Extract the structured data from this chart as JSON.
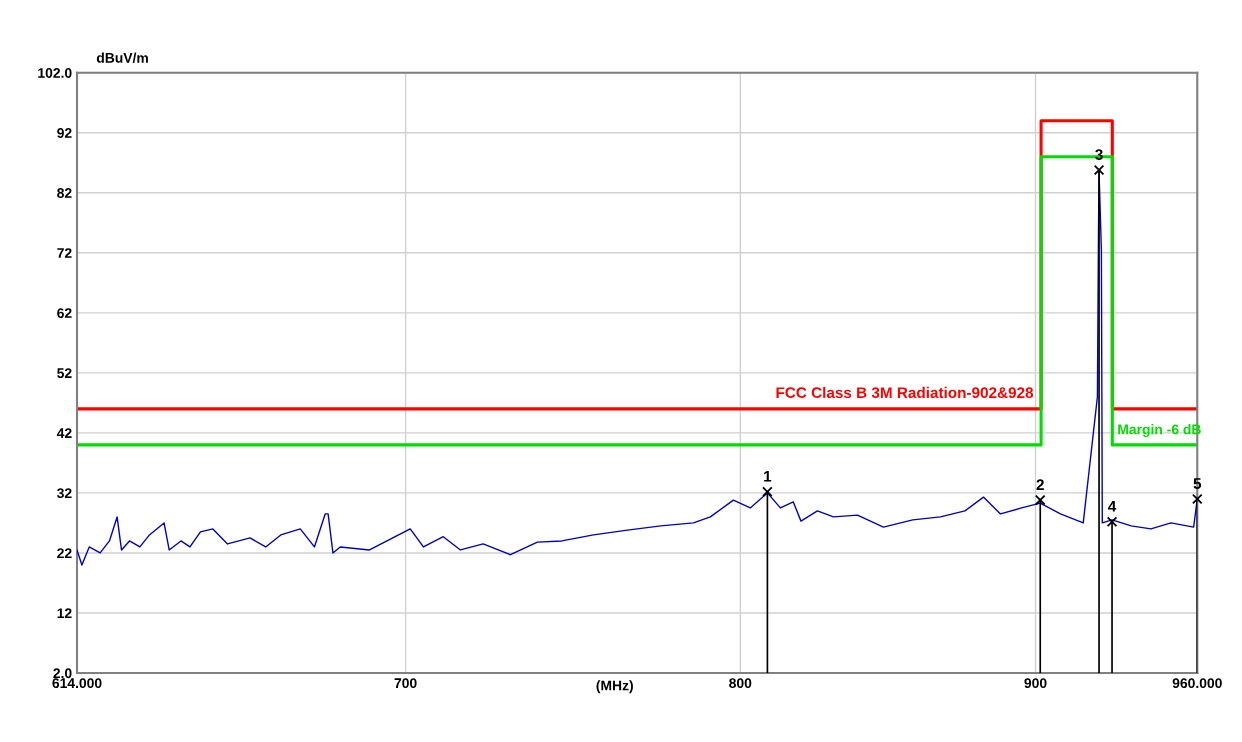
{
  "chart_data": {
    "type": "line",
    "ylabel": "dBuV/m",
    "xlabel": "(MHz)",
    "log": "x",
    "grid": true,
    "legend": false,
    "xlim": [
      614,
      960
    ],
    "xticks": [
      {
        "value": 614,
        "label": "614.000"
      },
      700,
      800,
      900,
      {
        "value": 960,
        "label": "960.000"
      }
    ],
    "ylim": [
      2,
      102
    ],
    "yticks": [
      {
        "value": 2,
        "label": "2.0"
      },
      12,
      22,
      32,
      42,
      52,
      62,
      72,
      82,
      92,
      {
        "value": 102,
        "label": "102.0"
      }
    ],
    "series": [
      {
        "name": "FCC Class B 3M Radiation-902&928",
        "type": "step",
        "color": "#ff0000",
        "x": [
          614,
          902,
          928,
          960
        ],
        "values": [
          46,
          94,
          46,
          46
        ]
      },
      {
        "name": "Margin -6 dB",
        "type": "step",
        "color": "#00dd00",
        "x": [
          614,
          902,
          928,
          960
        ],
        "values": [
          40,
          88,
          40,
          40
        ]
      },
      {
        "color": "#0000cc",
        "x": [
          614,
          615.2,
          617,
          619.7,
          622,
          623.9,
          625,
          627,
          629.6,
          632,
          635.7,
          637,
          640,
          642.3,
          645,
          648.2,
          652,
          657.9,
          662,
          666,
          671.2,
          675,
          677.9,
          678.7,
          680,
          682,
          690,
          701.3,
          705,
          710.6,
          715.5,
          722,
          729.9,
          737.8,
          745,
          754.5,
          764.8,
          775,
          785.2,
          790.5,
          797.8,
          803.2,
          808.7,
          812.9,
          817.1,
          819.6,
          825,
          830.3,
          838.3,
          847,
          857,
          866.5,
          875,
          881.5,
          887.5,
          895,
          901.7,
          909,
          917.3,
          922.5,
          922.9,
          923.1,
          923.96,
          924.3,
          927.9,
          935,
          942.4,
          950,
          958.6,
          960
        ],
        "values": [
          22.5,
          20,
          23,
          22,
          24,
          28,
          22.5,
          24,
          23,
          25,
          27,
          22.5,
          24,
          23,
          25.5,
          26,
          23.5,
          24.5,
          23,
          25,
          26,
          23,
          28.5,
          28.5,
          22,
          23,
          22.5,
          26,
          23,
          24.7,
          22.5,
          23.5,
          21.7,
          23.8,
          24,
          25,
          25.8,
          26.5,
          27,
          28,
          30.8,
          29.5,
          32,
          29.5,
          30.5,
          27.3,
          29,
          28,
          28.3,
          26.3,
          27.5,
          28,
          29,
          31.3,
          28.5,
          29.5,
          30.3,
          28.5,
          27,
          48,
          75.8,
          85.5,
          72.5,
          27,
          27.5,
          26.5,
          26,
          27,
          26.3,
          31
        ]
      },
      {
        "type": "lollipop",
        "color": "#000000",
        "marker": "cross",
        "x": [
          808.7,
          901.7,
          923.1,
          927.9,
          960
        ],
        "values": [
          32.2,
          30.8,
          85.8,
          27.2,
          31
        ]
      }
    ],
    "annotations": [
      {
        "text": "1",
        "x": 808.7,
        "y": 32.2
      },
      {
        "text": "2",
        "x": 901.7,
        "y": 30.8
      },
      {
        "text": "3",
        "x": 923.1,
        "y": 85.8
      },
      {
        "text": "4",
        "x": 927.9,
        "y": 27.2
      },
      {
        "text": "5",
        "x": 960,
        "y": 31
      }
    ]
  }
}
